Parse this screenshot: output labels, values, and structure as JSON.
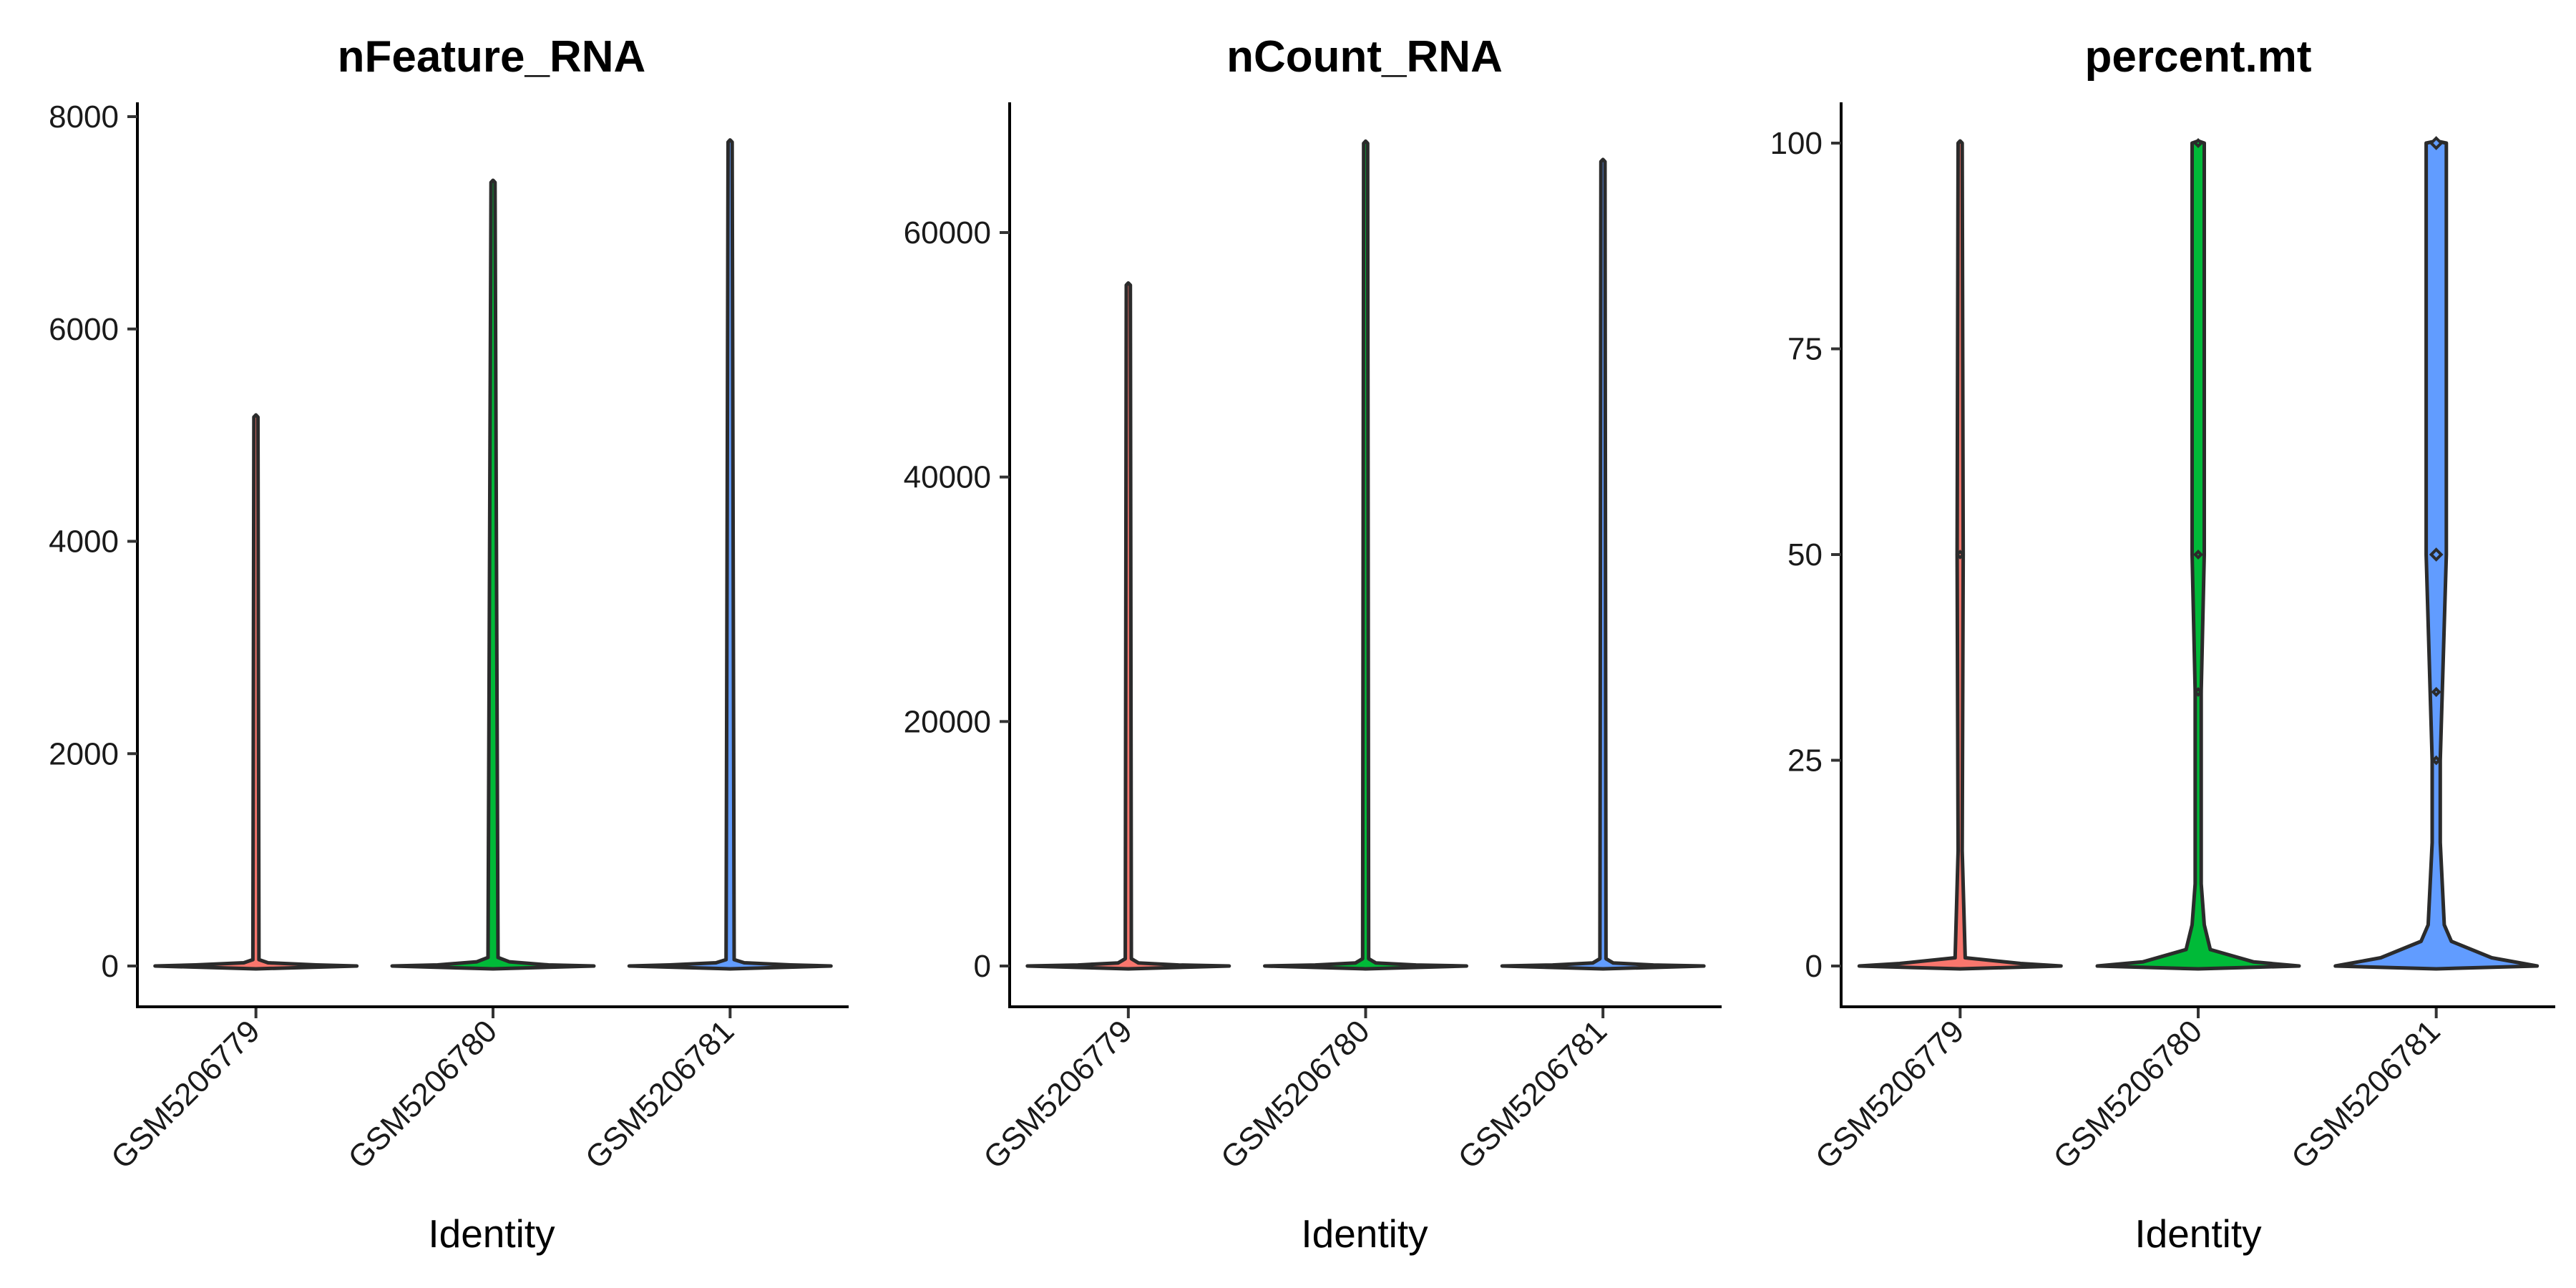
{
  "chart_data": [
    {
      "type": "violin",
      "title": "nFeature_RNA",
      "xlabel": "Identity",
      "ylabel": "",
      "categories": [
        "GSM5206779",
        "GSM5206780",
        "GSM5206781"
      ],
      "ylim": [
        -100,
        8200
      ],
      "yticks": [
        0,
        2000,
        4000,
        6000,
        8000
      ],
      "ytick_labels": [
        "0",
        "2000",
        "4000",
        "6000",
        "8000"
      ],
      "series": [
        {
          "category": "GSM5206779",
          "fill": "#F8766D",
          "min": 0,
          "max": 5170,
          "profile": [
            [
              0,
              1.0
            ],
            [
              10,
              0.6
            ],
            [
              30,
              0.12
            ],
            [
              60,
              0.03
            ],
            [
              5170,
              0.02
            ]
          ]
        },
        {
          "category": "GSM5206780",
          "fill": "#00BA38",
          "min": 0,
          "max": 7380,
          "profile": [
            [
              0,
              1.0
            ],
            [
              10,
              0.55
            ],
            [
              40,
              0.16
            ],
            [
              80,
              0.05
            ],
            [
              7380,
              0.02
            ]
          ]
        },
        {
          "category": "GSM5206781",
          "fill": "#619CFF",
          "min": 0,
          "max": 7760,
          "profile": [
            [
              0,
              1.0
            ],
            [
              10,
              0.6
            ],
            [
              30,
              0.14
            ],
            [
              60,
              0.04
            ],
            [
              7760,
              0.02
            ]
          ]
        }
      ],
      "grid": false,
      "legend": "none"
    },
    {
      "type": "violin",
      "title": "nCount_RNA",
      "xlabel": "Identity",
      "ylabel": "",
      "categories": [
        "GSM5206779",
        "GSM5206780",
        "GSM5206781"
      ],
      "ylim": [
        -3200,
        70500
      ],
      "yticks": [
        0,
        20000,
        40000,
        60000
      ],
      "ytick_labels": [
        "0",
        "20000",
        "40000",
        "60000"
      ],
      "series": [
        {
          "category": "GSM5206779",
          "fill": "#F8766D",
          "min": 0,
          "max": 55700,
          "profile": [
            [
              0,
              1.0
            ],
            [
              80,
              0.5
            ],
            [
              250,
              0.1
            ],
            [
              600,
              0.03
            ],
            [
              55700,
              0.02
            ]
          ]
        },
        {
          "category": "GSM5206780",
          "fill": "#00BA38",
          "min": 0,
          "max": 67300,
          "profile": [
            [
              0,
              1.0
            ],
            [
              80,
              0.5
            ],
            [
              250,
              0.1
            ],
            [
              600,
              0.03
            ],
            [
              67300,
              0.02
            ]
          ]
        },
        {
          "category": "GSM5206781",
          "fill": "#619CFF",
          "min": 0,
          "max": 65800,
          "profile": [
            [
              0,
              1.0
            ],
            [
              80,
              0.5
            ],
            [
              250,
              0.1
            ],
            [
              600,
              0.03
            ],
            [
              65800,
              0.02
            ]
          ]
        }
      ],
      "grid": false,
      "legend": "none"
    },
    {
      "type": "violin",
      "title": "percent.mt",
      "xlabel": "Identity",
      "ylabel": "",
      "categories": [
        "GSM5206779",
        "GSM5206780",
        "GSM5206781"
      ],
      "ylim": [
        -5,
        105
      ],
      "yticks": [
        0,
        25,
        50,
        75,
        100
      ],
      "ytick_labels": [
        "0",
        "25",
        "50",
        "75",
        "100"
      ],
      "series": [
        {
          "category": "GSM5206779",
          "fill": "#F8766D",
          "min": 0,
          "max": 100,
          "profile": [
            [
              0,
              1.0
            ],
            [
              0.3,
              0.6
            ],
            [
              1,
              0.05
            ],
            [
              14,
              0.02
            ],
            [
              50,
              0.03
            ],
            [
              100,
              0.02
            ]
          ]
        },
        {
          "category": "GSM5206780",
          "fill": "#00BA38",
          "min": 0,
          "max": 100,
          "profile": [
            [
              0,
              1.0
            ],
            [
              0.5,
              0.55
            ],
            [
              2,
              0.12
            ],
            [
              5,
              0.06
            ],
            [
              10,
              0.03
            ],
            [
              33.3,
              0.03
            ],
            [
              50,
              0.06
            ],
            [
              100,
              0.06
            ]
          ]
        },
        {
          "category": "GSM5206781",
          "fill": "#619CFF",
          "min": 0,
          "max": 100,
          "profile": [
            [
              0,
              1.0
            ],
            [
              1,
              0.55
            ],
            [
              3,
              0.15
            ],
            [
              5,
              0.08
            ],
            [
              15,
              0.04
            ],
            [
              25,
              0.04
            ],
            [
              33.3,
              0.06
            ],
            [
              50,
              0.1
            ],
            [
              100,
              0.1
            ]
          ]
        }
      ],
      "grid": false,
      "legend": "none"
    }
  ]
}
